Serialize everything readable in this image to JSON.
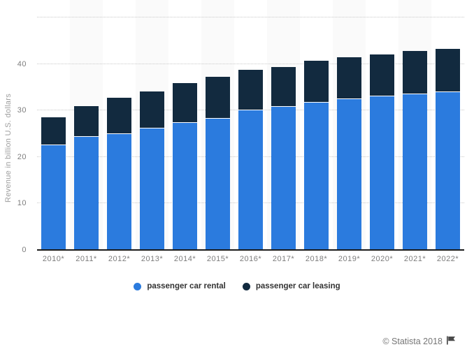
{
  "chart_data": {
    "type": "bar",
    "stacked": true,
    "title": "",
    "ylabel": "Revenue in billion U.S. dollars",
    "xlabel": "",
    "ylim": [
      0,
      50
    ],
    "yticks": [
      0,
      10,
      20,
      30,
      40
    ],
    "gridlines_at": [
      10,
      20,
      30,
      40,
      50
    ],
    "grid": "horizontal-dotted",
    "legend_position": "bottom-center",
    "categories": [
      "2010*",
      "2011*",
      "2012*",
      "2013*",
      "2014*",
      "2015*",
      "2016*",
      "2017*",
      "2018*",
      "2019*",
      "2020*",
      "2021*",
      "2022*"
    ],
    "series": [
      {
        "name": "passenger car rental",
        "color": "#2B7BDE",
        "values": [
          22.5,
          24.4,
          25.0,
          26.1,
          27.3,
          28.3,
          30.1,
          30.8,
          31.7,
          32.4,
          33.1,
          33.5,
          33.9
        ]
      },
      {
        "name": "passenger car leasing",
        "color": "#122A3F",
        "values": [
          6.0,
          6.5,
          7.7,
          8.0,
          8.6,
          9.0,
          8.6,
          8.6,
          9.0,
          9.1,
          9.0,
          9.3,
          9.3
        ]
      }
    ]
  },
  "colors": {
    "rental": "#2B7BDE",
    "leasing": "#122A3F",
    "column_band": "#FAFAFA",
    "gridline": "#C9C9C9",
    "axis_line": "#1B1B1B",
    "tick_text": "#7D7D7D",
    "axis_title_text": "#9E9E9E",
    "legend_text": "#333333",
    "footer_text": "#767676"
  },
  "legend": {
    "items": [
      {
        "label": "passenger car rental",
        "color": "#2B7BDE"
      },
      {
        "label": "passenger car leasing",
        "color": "#122A3F"
      }
    ]
  },
  "footer": {
    "attribution": "© Statista 2018"
  }
}
